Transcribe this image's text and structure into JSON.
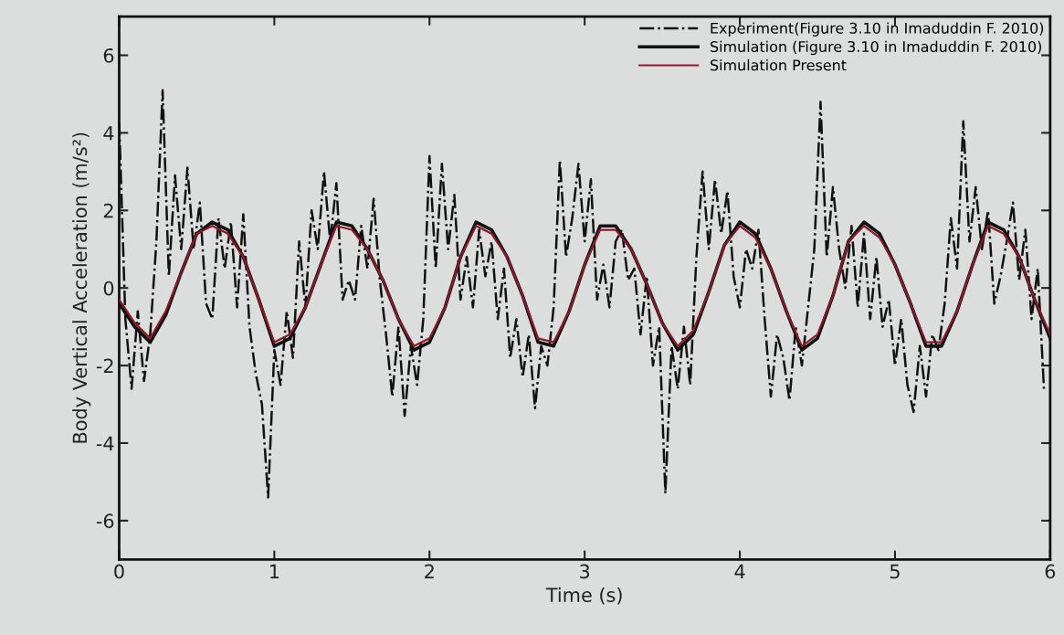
{
  "chart_data": {
    "type": "line",
    "xlabel": "Time (s)",
    "ylabel": "Body Vertical Acceleration (m/s²)",
    "xlim": [
      0,
      6
    ],
    "ylim": [
      -7,
      7
    ],
    "xticks": [
      0,
      1,
      2,
      3,
      4,
      5,
      6
    ],
    "yticks": [
      -6,
      -4,
      -2,
      0,
      2,
      4,
      6
    ],
    "grid": false,
    "legend": "top right",
    "marker": "none",
    "x": [
      0.0,
      0.1,
      0.2,
      0.3,
      0.4,
      0.5,
      0.6,
      0.7,
      0.8,
      0.9,
      1.0,
      1.1,
      1.2,
      1.3,
      1.4,
      1.5,
      1.6,
      1.7,
      1.8,
      1.9,
      2.0,
      2.1,
      2.2,
      2.3,
      2.4,
      2.5,
      2.6,
      2.7,
      2.8,
      2.9,
      3.0,
      3.1,
      3.2,
      3.3,
      3.4,
      3.5,
      3.6,
      3.7,
      3.8,
      3.9,
      4.0,
      4.1,
      4.2,
      4.3,
      4.4,
      4.5,
      4.6,
      4.7,
      4.8,
      4.9,
      5.0,
      5.1,
      5.2,
      5.3,
      5.4,
      5.5,
      5.6,
      5.7,
      5.8,
      5.9,
      6.0
    ],
    "series": [
      {
        "name": "Experiment(Figure 3.10 in Imaduddin F. 2010)",
        "color": "#111111",
        "line_style": "dashdot",
        "x": [
          0.0,
          0.04,
          0.08,
          0.12,
          0.16,
          0.2,
          0.24,
          0.28,
          0.32,
          0.36,
          0.4,
          0.44,
          0.48,
          0.52,
          0.56,
          0.6,
          0.64,
          0.68,
          0.72,
          0.76,
          0.8,
          0.84,
          0.88,
          0.92,
          0.96,
          1.0,
          1.04,
          1.08,
          1.12,
          1.16,
          1.2,
          1.24,
          1.28,
          1.32,
          1.36,
          1.4,
          1.44,
          1.48,
          1.52,
          1.56,
          1.6,
          1.64,
          1.68,
          1.72,
          1.76,
          1.8,
          1.84,
          1.88,
          1.92,
          1.96,
          2.0,
          2.04,
          2.08,
          2.12,
          2.16,
          2.2,
          2.24,
          2.28,
          2.32,
          2.36,
          2.4,
          2.44,
          2.48,
          2.52,
          2.56,
          2.6,
          2.64,
          2.68,
          2.72,
          2.76,
          2.8,
          2.84,
          2.88,
          2.92,
          2.96,
          3.0,
          3.04,
          3.08,
          3.12,
          3.16,
          3.2,
          3.24,
          3.28,
          3.32,
          3.36,
          3.4,
          3.44,
          3.48,
          3.52,
          3.56,
          3.6,
          3.64,
          3.68,
          3.72,
          3.76,
          3.8,
          3.84,
          3.88,
          3.92,
          3.96,
          4.0,
          4.04,
          4.08,
          4.12,
          4.16,
          4.2,
          4.24,
          4.28,
          4.32,
          4.36,
          4.4,
          4.44,
          4.48,
          4.52,
          4.56,
          4.6,
          4.64,
          4.68,
          4.72,
          4.76,
          4.8,
          4.84,
          4.88,
          4.92,
          4.96,
          5.0,
          5.04,
          5.08,
          5.12,
          5.16,
          5.2,
          5.24,
          5.28,
          5.32,
          5.36,
          5.4,
          5.44,
          5.48,
          5.52,
          5.56,
          5.6,
          5.64,
          5.68,
          5.72,
          5.76,
          5.8,
          5.84,
          5.88,
          5.92,
          5.96
        ],
        "values": [
          4.3,
          -0.8,
          -2.6,
          -0.6,
          -2.4,
          -1.2,
          1.2,
          5.1,
          0.3,
          2.9,
          1.0,
          3.1,
          1.0,
          2.2,
          -0.4,
          -0.8,
          1.8,
          0.5,
          1.7,
          -0.5,
          1.9,
          -1.0,
          -2.2,
          -3.0,
          -5.4,
          -1.6,
          -2.5,
          -0.6,
          -1.8,
          1.2,
          -0.5,
          2.0,
          1.0,
          3.0,
          1.2,
          2.7,
          -0.3,
          0.2,
          -0.3,
          1.6,
          0.5,
          2.3,
          0.2,
          -1.2,
          -2.8,
          -1.0,
          -3.3,
          -1.5,
          -2.5,
          -0.8,
          3.4,
          0.5,
          3.2,
          1.0,
          2.4,
          -0.3,
          0.8,
          -0.5,
          1.5,
          0.3,
          1.2,
          -0.8,
          0.5,
          -1.8,
          -0.8,
          -2.3,
          -1.2,
          -3.1,
          -1.5,
          -2.0,
          -0.5,
          3.3,
          0.8,
          1.8,
          3.2,
          1.2,
          2.8,
          -0.3,
          0.6,
          -0.5,
          1.2,
          1.5,
          0.2,
          0.5,
          -1.2,
          0.3,
          -2.0,
          -1.0,
          -5.3,
          -1.5,
          -2.6,
          -1.0,
          -2.5,
          0.8,
          3.0,
          1.0,
          2.8,
          1.4,
          2.5,
          0.3,
          -0.5,
          1.0,
          0.5,
          1.5,
          -0.8,
          -2.8,
          -1.2,
          -1.8,
          -2.9,
          -1.0,
          -2.0,
          -0.5,
          1.0,
          4.8,
          0.8,
          2.6,
          1.0,
          0.0,
          1.6,
          -0.5,
          1.4,
          -0.8,
          0.8,
          -1.0,
          -0.3,
          -2.0,
          -0.8,
          -2.5,
          -3.2,
          -1.5,
          -2.8,
          -1.2,
          -1.6,
          -0.4,
          1.8,
          0.5,
          4.3,
          1.2,
          2.6,
          1.0,
          2.0,
          -0.4,
          0.3,
          1.2,
          2.2,
          0.2,
          1.5,
          -0.8,
          0.5,
          -2.6
        ]
      },
      {
        "name": "Simulation (Figure 3.10 in Imaduddin F. 2010)",
        "color": "#111111",
        "line_style": "solid",
        "values": [
          -0.4,
          -1.0,
          -1.4,
          -0.7,
          0.4,
          1.4,
          1.7,
          1.5,
          0.8,
          -0.3,
          -1.5,
          -1.3,
          -0.5,
          0.6,
          1.7,
          1.6,
          1.0,
          0.2,
          -0.8,
          -1.6,
          -1.4,
          -0.5,
          0.8,
          1.7,
          1.5,
          0.8,
          -0.2,
          -1.4,
          -1.5,
          -0.6,
          0.6,
          1.6,
          1.6,
          1.0,
          0.1,
          -0.9,
          -1.6,
          -1.2,
          -0.1,
          1.1,
          1.7,
          1.4,
          0.5,
          -0.6,
          -1.6,
          -1.3,
          -0.2,
          1.2,
          1.7,
          1.4,
          0.6,
          -0.4,
          -1.5,
          -1.5,
          -0.6,
          0.6,
          1.7,
          1.5,
          0.8,
          -0.3,
          -1.3
        ]
      },
      {
        "name": "Simulation Present",
        "color": "#8b1a2b",
        "line_style": "solid",
        "values": [
          -0.3,
          -0.9,
          -1.3,
          -0.6,
          0.4,
          1.4,
          1.6,
          1.4,
          0.8,
          -0.3,
          -1.4,
          -1.2,
          -0.5,
          0.6,
          1.6,
          1.5,
          1.0,
          0.2,
          -0.8,
          -1.5,
          -1.3,
          -0.5,
          0.8,
          1.6,
          1.4,
          0.8,
          -0.2,
          -1.3,
          -1.4,
          -0.6,
          0.6,
          1.5,
          1.5,
          1.0,
          0.1,
          -0.9,
          -1.5,
          -1.1,
          -0.1,
          1.1,
          1.6,
          1.3,
          0.5,
          -0.6,
          -1.5,
          -1.2,
          -0.2,
          1.2,
          1.6,
          1.3,
          0.6,
          -0.4,
          -1.4,
          -1.4,
          -0.6,
          0.6,
          1.6,
          1.4,
          0.8,
          -0.3,
          -1.2
        ]
      }
    ]
  }
}
